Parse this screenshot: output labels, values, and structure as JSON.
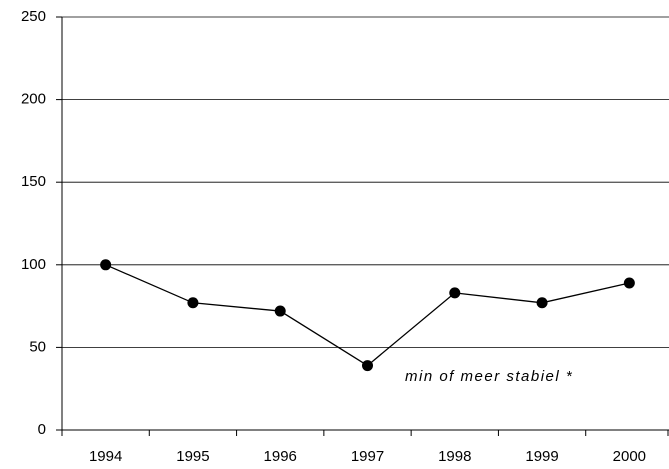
{
  "chart_data": {
    "type": "line",
    "categories": [
      "1994",
      "1995",
      "1996",
      "1997",
      "1998",
      "1999",
      "2000"
    ],
    "series": [
      {
        "color": "#000000",
        "values": [
          100,
          77,
          72,
          39,
          83,
          77,
          89
        ]
      }
    ],
    "ylim": [
      0,
      250
    ],
    "yticks": [
      0,
      50,
      100,
      150,
      200,
      250
    ],
    "grid": true,
    "annotation": "min of meer stabiel *"
  }
}
